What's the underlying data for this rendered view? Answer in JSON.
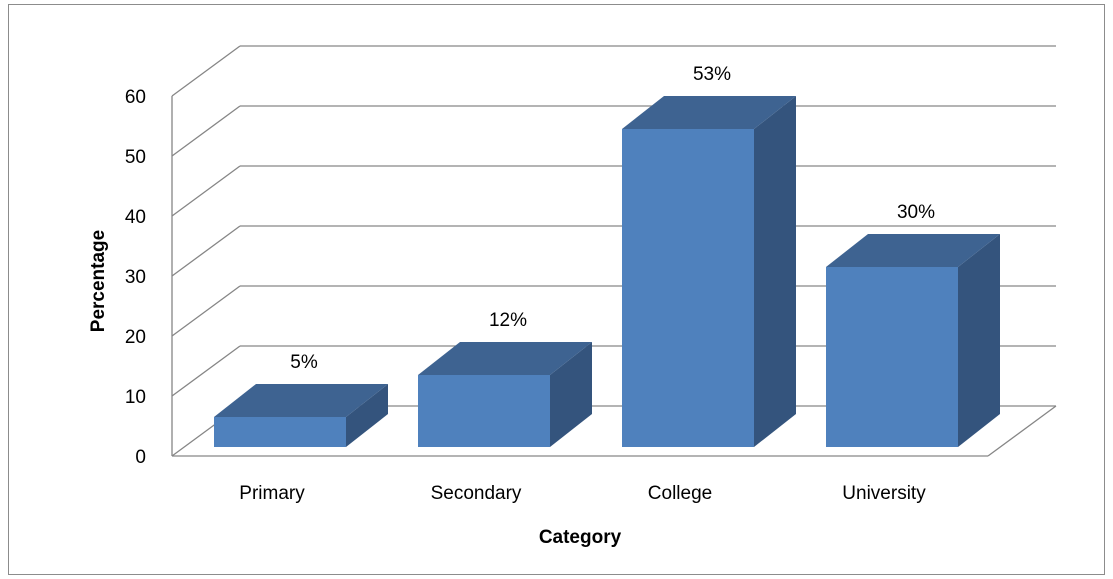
{
  "chart_data": {
    "type": "bar",
    "categories": [
      "Primary",
      "Secondary",
      "College",
      "University"
    ],
    "values": [
      5,
      12,
      53,
      30
    ],
    "data_labels": [
      "5%",
      "12%",
      "53%",
      "30%"
    ],
    "xlabel": "Category",
    "ylabel": "Percentage",
    "ylim": [
      0,
      60
    ],
    "yticks": [
      "0",
      "10",
      "20",
      "30",
      "40",
      "50",
      "60"
    ],
    "grid": true,
    "style": "3d",
    "colors": {
      "bar_front": "#4f81bd",
      "bar_top": "#3e6391",
      "bar_side": "#34547d",
      "grid": "#868686"
    }
  }
}
